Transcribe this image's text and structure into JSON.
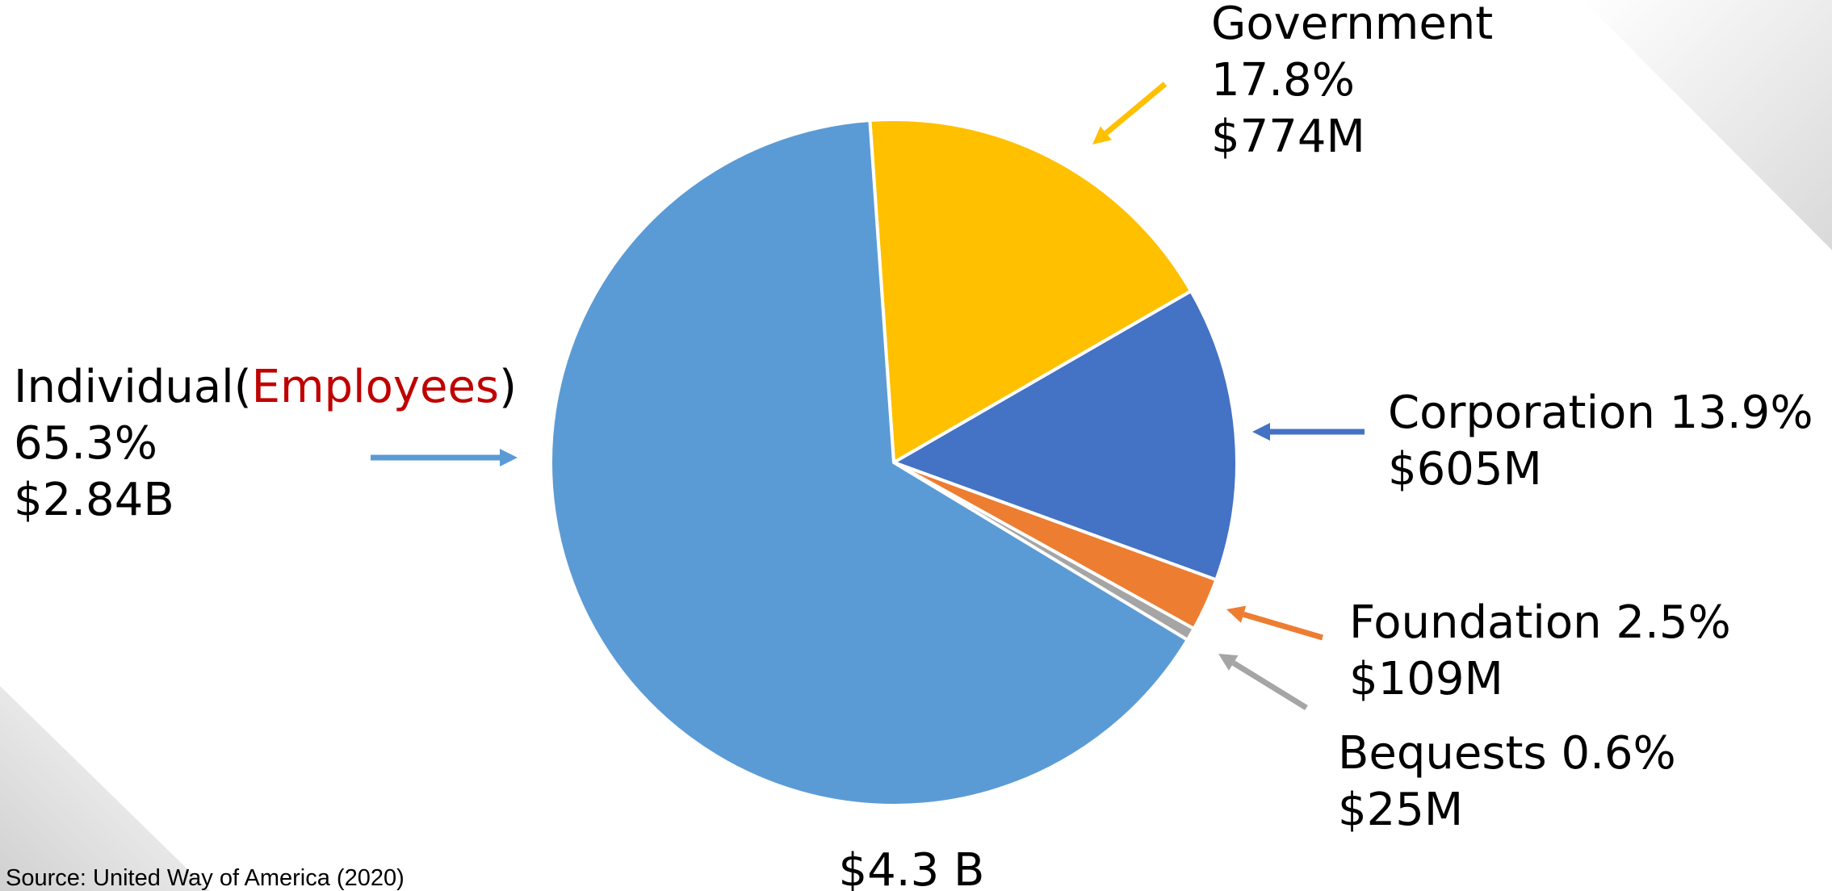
{
  "chart_data": {
    "type": "pie",
    "categories": [
      "Government",
      "Corporation",
      "Foundation",
      "Bequests",
      "Individual(Employees)"
    ],
    "highlight": "Employees",
    "highlight_color": "#c00000",
    "values": [
      17.8,
      13.9,
      2.5,
      0.6,
      65.3
    ],
    "value_labels": [
      "17.8%",
      "13.9%",
      "2.5%",
      "0.6%",
      "65.3%"
    ],
    "amounts": [
      774000000,
      605000000,
      109000000,
      25000000,
      2840000000
    ],
    "amount_labels": [
      "$774M",
      "$605M",
      "$109M",
      "$25M",
      "$2.84B"
    ],
    "colors": [
      "#ffc000",
      "#4472c4",
      "#ed7d31",
      "#a5a5a5",
      "#5b9bd5"
    ],
    "total": 4300000000,
    "total_label": "$4.3 B",
    "source": "Source: United Way of America (2020)"
  }
}
